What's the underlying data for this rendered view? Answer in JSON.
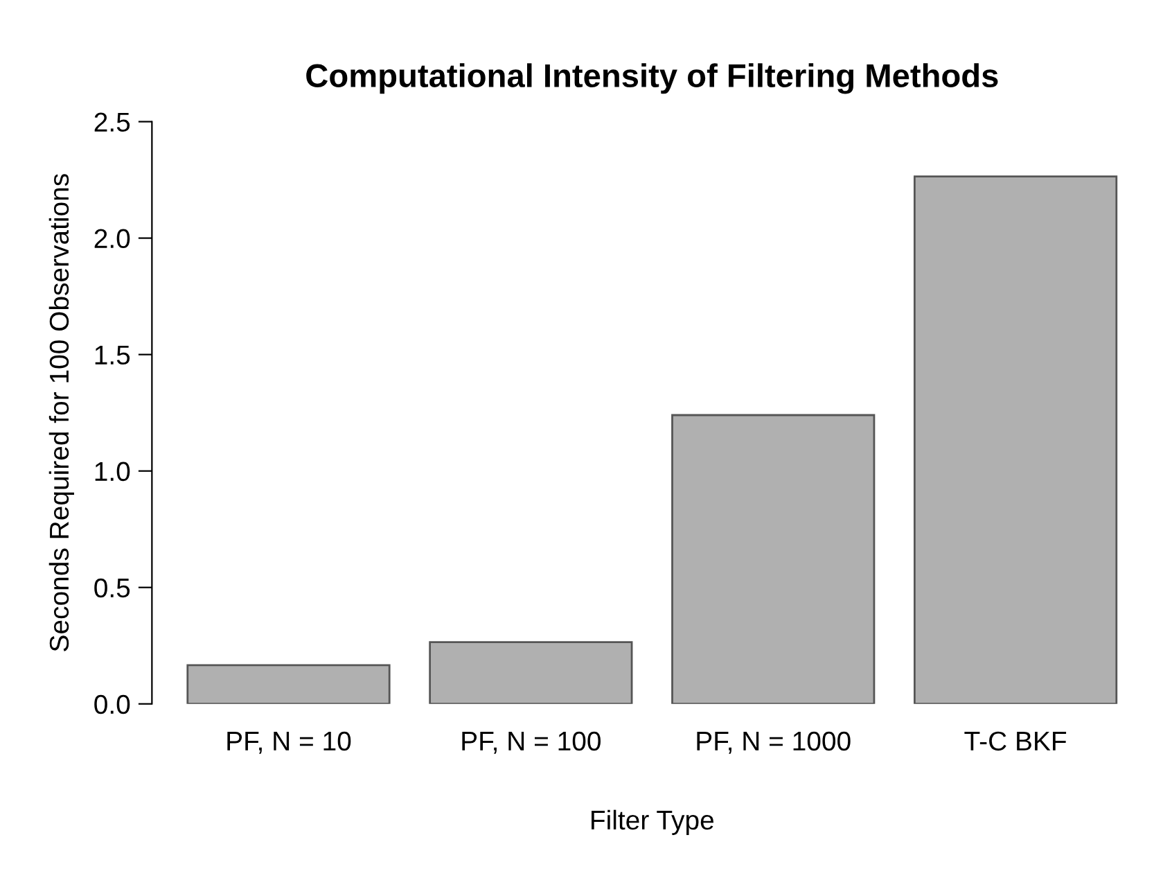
{
  "chart_data": {
    "type": "bar",
    "title": "Computational Intensity of Filtering Methods",
    "xlabel": "Filter Type",
    "ylabel": "Seconds Required for 100 Observations",
    "categories": [
      "PF, N = 10",
      "PF, N = 100",
      "PF, N = 1000",
      "T-C BKF"
    ],
    "values": [
      0.166,
      0.265,
      1.24,
      2.265
    ],
    "color": "#b0b0b0",
    "ylim": [
      0,
      2.5
    ],
    "yticks": [
      {
        "value": 0,
        "label": "0.0"
      },
      {
        "value": 0.5,
        "label": "0.5"
      },
      {
        "value": 1,
        "label": "1.0"
      },
      {
        "value": 1.5,
        "label": "1.5"
      },
      {
        "value": 2,
        "label": "2.0"
      },
      {
        "value": 2.5,
        "label": "2.5"
      }
    ],
    "grid": false
  }
}
